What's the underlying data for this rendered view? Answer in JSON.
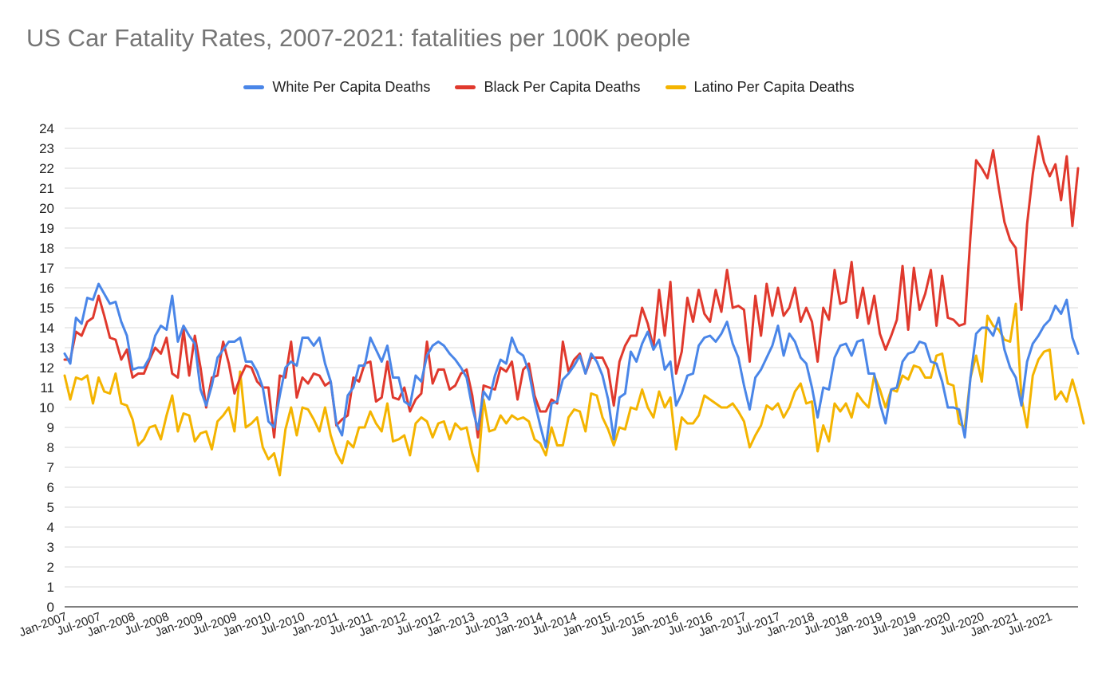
{
  "chart_data": {
    "type": "line",
    "title": "US Car Fatality Rates, 2007-2021: fatalities per 100K people",
    "xlabel": "",
    "ylabel": "",
    "ylim": [
      0,
      24
    ],
    "yticks": [
      0,
      1,
      2,
      3,
      4,
      5,
      6,
      7,
      8,
      9,
      10,
      11,
      12,
      13,
      14,
      15,
      16,
      17,
      18,
      19,
      20,
      21,
      22,
      23,
      24
    ],
    "grid": true,
    "legend_position": "top",
    "x_tick_labels": [
      "Jan-2007",
      "Jul-2007",
      "Jan-2008",
      "Jul-2008",
      "Jan-2009",
      "Jul-2009",
      "Jan-2010",
      "Jul-2010",
      "Jan-2011",
      "Jul-2011",
      "Jan-2012",
      "Jul-2012",
      "Jan-2013",
      "Jul-2013",
      "Jan-2014",
      "Jul-2014",
      "Jan-2015",
      "Jul-2015",
      "Jan-2016",
      "Jul-2016",
      "Jan-2017",
      "Jul-2017",
      "Jan-2018",
      "Jul-2018",
      "Jan-2019",
      "Jul-2019",
      "Jan-2020",
      "Jul-2020",
      "Jan-2021",
      "Jul-2021"
    ],
    "start_month": "Jan-2007",
    "series": [
      {
        "name": "White Per Capita Deaths",
        "color": "#4a86e8",
        "values": [
          12.7,
          12.2,
          14.5,
          14.2,
          15.5,
          15.4,
          16.2,
          15.7,
          15.2,
          15.3,
          14.3,
          13.6,
          11.9,
          12.0,
          12.0,
          12.5,
          13.6,
          14.1,
          13.9,
          15.6,
          13.3,
          14.1,
          13.6,
          13.2,
          10.9,
          10.1,
          11.1,
          12.5,
          12.9,
          13.3,
          13.3,
          13.5,
          12.3,
          12.3,
          11.8,
          11.0,
          9.3,
          9.0,
          10.6,
          12.0,
          12.3,
          12.1,
          13.5,
          13.5,
          13.1,
          13.5,
          12.2,
          11.3,
          9.2,
          8.6,
          10.6,
          11.0,
          12.1,
          12.1,
          13.5,
          12.9,
          12.3,
          13.1,
          11.5,
          11.5,
          10.3,
          10.1,
          11.6,
          11.3,
          12.6,
          13.1,
          13.3,
          13.1,
          12.7,
          12.4,
          12.0,
          11.5,
          10.0,
          8.9,
          10.8,
          10.4,
          11.6,
          12.4,
          12.2,
          13.5,
          12.8,
          12.6,
          11.8,
          10.3,
          9.1,
          8.0,
          10.2,
          10.3,
          11.4,
          11.7,
          12.1,
          12.6,
          11.7,
          12.7,
          12.3,
          11.6,
          10.4,
          8.4,
          10.5,
          10.7,
          12.8,
          12.3,
          13.2,
          13.8,
          12.9,
          13.4,
          11.9,
          12.3,
          10.1,
          10.7,
          11.6,
          11.7,
          13.1,
          13.5,
          13.6,
          13.3,
          13.7,
          14.3,
          13.2,
          12.5,
          11.1,
          9.9,
          11.5,
          11.9,
          12.5,
          13.1,
          14.1,
          12.6,
          13.7,
          13.3,
          12.5,
          12.2,
          11.0,
          9.5,
          11.0,
          10.9,
          12.5,
          13.1,
          13.2,
          12.6,
          13.3,
          13.4,
          11.7,
          11.7,
          10.2,
          9.2,
          10.9,
          11.0,
          12.3,
          12.7,
          12.8,
          13.3,
          13.2,
          12.3,
          12.2,
          11.3,
          10.0,
          10.0,
          9.9,
          8.5,
          11.5,
          13.7,
          14.0,
          14.0,
          13.6,
          14.5,
          12.9,
          12.0,
          11.5,
          10.1,
          12.3,
          13.2,
          13.6,
          14.1,
          14.4,
          15.1,
          14.7,
          15.4,
          13.5,
          12.7
        ]
      },
      {
        "name": "Black Per Capita Deaths",
        "color": "#e0392d",
        "values": [
          12.4,
          12.4,
          13.8,
          13.6,
          14.3,
          14.5,
          15.6,
          14.6,
          13.5,
          13.4,
          12.4,
          12.9,
          11.5,
          11.7,
          11.7,
          12.4,
          13.0,
          12.7,
          13.5,
          11.7,
          11.5,
          13.9,
          11.6,
          13.6,
          12.0,
          10.0,
          11.5,
          11.6,
          13.3,
          12.2,
          10.7,
          11.5,
          12.1,
          12.0,
          11.3,
          11.0,
          11.0,
          8.5,
          11.6,
          11.5,
          13.3,
          10.5,
          11.5,
          11.2,
          11.7,
          11.6,
          11.1,
          11.3,
          9.1,
          9.4,
          9.6,
          11.5,
          11.3,
          12.2,
          12.3,
          10.3,
          10.5,
          12.3,
          10.5,
          10.4,
          11.0,
          9.8,
          10.4,
          10.7,
          13.3,
          11.2,
          11.9,
          11.9,
          10.9,
          11.1,
          11.7,
          11.9,
          10.6,
          8.5,
          11.1,
          11.0,
          10.9,
          12.0,
          11.8,
          12.3,
          10.4,
          11.9,
          12.2,
          10.6,
          9.8,
          9.8,
          10.4,
          10.2,
          13.3,
          11.8,
          12.4,
          12.7,
          11.7,
          12.5,
          12.5,
          12.5,
          11.9,
          10.1,
          12.3,
          13.1,
          13.6,
          13.6,
          15.0,
          14.2,
          13.0,
          15.9,
          13.6,
          16.3,
          11.7,
          12.8,
          15.5,
          14.3,
          15.9,
          14.7,
          14.3,
          15.9,
          14.8,
          16.9,
          15.0,
          15.1,
          14.9,
          12.3,
          15.6,
          13.6,
          16.2,
          14.6,
          16.0,
          14.6,
          15.0,
          16.0,
          14.3,
          15.0,
          14.3,
          12.3,
          15.0,
          14.4,
          16.9,
          15.2,
          15.3,
          17.3,
          14.5,
          16.0,
          14.2,
          15.6,
          13.7,
          12.9,
          13.6,
          14.4,
          17.1,
          13.9,
          17.0,
          14.9,
          15.7,
          16.9,
          14.1,
          16.6,
          14.5,
          14.4,
          14.1,
          14.2,
          18.6,
          22.4,
          22.0,
          21.5,
          22.9,
          21.0,
          19.3,
          18.4,
          18.0,
          14.9,
          19.2,
          21.7,
          23.6,
          22.3,
          21.6,
          22.2,
          20.4,
          22.6,
          19.1,
          22.0
        ]
      },
      {
        "name": "Latino Per Capita Deaths",
        "color": "#f4b400",
        "values": [
          11.6,
          10.4,
          11.5,
          11.4,
          11.6,
          10.2,
          11.5,
          10.8,
          10.7,
          11.7,
          10.2,
          10.1,
          9.4,
          8.1,
          8.4,
          9.0,
          9.1,
          8.4,
          9.6,
          10.6,
          8.8,
          9.7,
          9.6,
          8.3,
          8.7,
          8.8,
          7.9,
          9.3,
          9.6,
          10.0,
          8.8,
          11.8,
          9.0,
          9.2,
          9.5,
          8.0,
          7.4,
          7.7,
          6.6,
          8.9,
          10.0,
          8.6,
          10.0,
          9.9,
          9.4,
          8.8,
          10.0,
          8.6,
          7.7,
          7.2,
          8.3,
          8.0,
          9.0,
          9.0,
          9.8,
          9.2,
          8.8,
          10.2,
          8.3,
          8.4,
          8.6,
          7.6,
          9.2,
          9.5,
          9.3,
          8.5,
          9.2,
          9.3,
          8.4,
          9.2,
          8.9,
          9.0,
          7.7,
          6.8,
          10.4,
          8.8,
          8.9,
          9.6,
          9.2,
          9.6,
          9.4,
          9.5,
          9.3,
          8.4,
          8.2,
          7.6,
          9.0,
          8.1,
          8.1,
          9.5,
          9.9,
          9.8,
          8.8,
          10.7,
          10.6,
          9.5,
          8.9,
          8.1,
          9.0,
          8.9,
          10.0,
          9.9,
          10.9,
          10.0,
          9.5,
          10.8,
          10.0,
          10.5,
          7.9,
          9.5,
          9.2,
          9.2,
          9.6,
          10.6,
          10.4,
          10.2,
          10.0,
          10.0,
          10.2,
          9.8,
          9.3,
          8.0,
          8.6,
          9.1,
          10.1,
          9.9,
          10.2,
          9.5,
          10.0,
          10.8,
          11.2,
          10.2,
          10.3,
          7.8,
          9.1,
          8.3,
          10.2,
          9.8,
          10.2,
          9.5,
          10.7,
          10.3,
          10.0,
          11.6,
          10.9,
          10.0,
          10.9,
          10.8,
          11.6,
          11.4,
          12.1,
          12.0,
          11.5,
          11.5,
          12.6,
          12.7,
          11.2,
          11.1,
          9.2,
          9.0,
          11.5,
          12.6,
          11.3,
          14.6,
          14.1,
          13.9,
          13.4,
          13.3,
          15.2,
          10.5,
          9.0,
          11.6,
          12.4,
          12.8,
          12.9,
          10.4,
          10.8,
          10.3,
          11.4,
          10.4,
          9.2
        ]
      }
    ]
  }
}
